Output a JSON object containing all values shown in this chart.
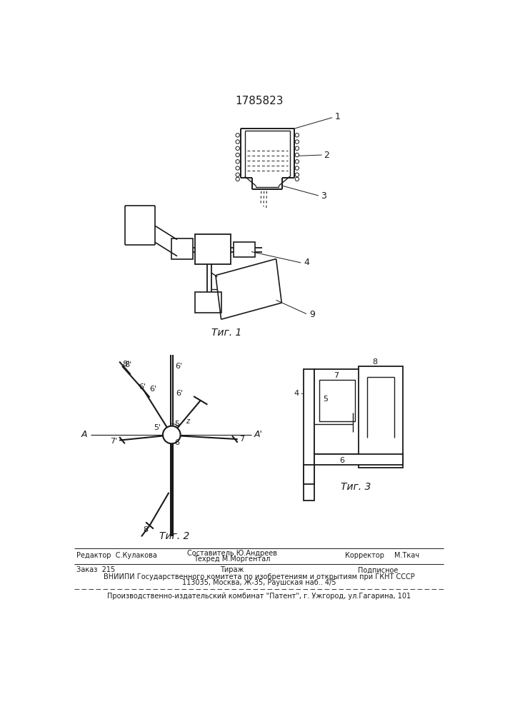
{
  "title": "1785823",
  "fig1_label": "Τиг. 1",
  "fig2_label": "Τиг. 2",
  "fig3_label": "Τиг. 3",
  "line_color": "#1a1a1a"
}
